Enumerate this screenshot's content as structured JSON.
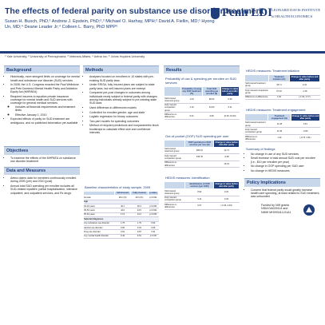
{
  "header": {
    "title": "The effects of federal parity on substance use disorder treatment",
    "authors": "Susan H. Busch, PhD;¹ Andrew J. Epstein, PhD;²,³ Michael O. Harhay, MPH;² David A. Fiellin, MD;¹ Hyong Un, MD;⁴ Deane Leader Jr;⁴ Colleen L. Barry, PhD MPP⁵",
    "affiliations": "¹ Yale University; ² University of Pennsylvania; ³ Veterans Affairs; ⁴ Aetna Inc; ⁵ Johns Hopkins University",
    "logo": "Penn LDI",
    "logo_text": [
      "LEONARD DAVIS INSTITUTE",
      "of HEALTH ECONOMICS"
    ]
  },
  "background": {
    "heading": "Background",
    "bullets": [
      "Historically, more stringent limits on coverage for mental health and substance use disorder (SUD) services",
      "In 2008, the U.S. Congress enacted the Paul Wellstone and Pete Domenici Mental Health Parity and Addiction Equity Act (MHPAEA)",
      {
        "text": "Required insurers to equalize private insurance coverage for mental health and SUD services with coverage for general medical services",
        "sub": [
          "Includes all financial requirements and treatment limits",
          "Effective January 1, 2010"
        ]
      },
      "Expected effects of parity on SUD treatment are ambiguous, and no published information yet available"
    ]
  },
  "objectives": {
    "heading": "Objectives",
    "bullets": [
      "To examine the effects of the MHPAEA on substance use disorder treatment"
    ]
  },
  "data_measures": {
    "heading": "Data and Measures",
    "bullets": [
      "Aetna claims data for members continuously enrolled during 2009 (pre) and 2010 (post)",
      "Annual total SUD spending per enrollee includes all SUD-related inpatient, partial hospitalization, intensive outpatient, and outpatient services, and Rx drugs"
    ]
  },
  "methods": {
    "heading": "Methods",
    "bullets": [
      "Analyses focused on enrollees in 10 states with pre-existing SUD parity laws",
      "Under ERISA, fully insured plans are subject to state parity laws, but self-insured plans are exempt",
      "Compared pre-post changes in outcomes among individuals newly subject to federal parity with changes among individuals already subject to pre-existing state SUD laws",
      "Used difference-in-differences models",
      "Controlled for enrollee gender, age and state",
      "Logistic regression for binary outcomes",
      "Two-part models for spending outcomes",
      "Method of recycled predictions and nonparametric block bootstraps to calculate effect size and confidence intervals"
    ]
  },
  "baseline_table": {
    "caption": "Baseline characteristics of study sample, 2009",
    "columns": [
      "Self-insured",
      "Fully insured",
      "p-value"
    ],
    "rows": [
      [
        "Female",
        "48.2 (%)",
        "49.4 (%)",
        "p<0.001"
      ],
      [
        "Age"
      ],
      [
        "18-34 years",
        "40.1",
        "36.3",
        "p<0.001"
      ],
      [
        "35-54 years",
        "42.0",
        "44.5",
        "p<0.001"
      ],
      [
        "55-64 years",
        "17.9",
        "19.2",
        "p<0.001"
      ],
      [
        "Selected diagnoses"
      ],
      [
        "Any substance use disorder",
        "1.75",
        "1.79",
        "0.52"
      ],
      [
        "Alcohol use disorder",
        "0.90",
        "0.91",
        "0.66"
      ],
      [
        "Drug use disorder",
        "0.91",
        "0.87",
        "0.31"
      ],
      [
        "Any mental health disorder",
        "9.42",
        "9.61",
        "p<0.05"
      ]
    ]
  },
  "results": {
    "heading": "Results",
    "use_table": {
      "caption": "Probability of use & spending per enrollee on SUD services",
      "columns": [
        "Probability of using any SUD treatment (%)",
        "Total SUD spending per enrollee ($)",
        "Change in value before and after parity"
      ],
      "rows": [
        [
          "Self-insured treatment group",
          "1.04",
          "86.52",
          "0.06"
        ],
        [
          "Fully insured comparison group",
          "1.10",
          "91.63",
          "5.11"
        ],
        [
          "Difference-in-differences",
          "0.01",
          "9.99",
          "(0.25, 19.30)"
        ]
      ]
    },
    "oop_table": {
      "caption": "Out-of-pocket (OOP) SUD spending per user",
      "columns": [
        "OOP spending for SUD services per user ($)",
        "Change in value before and after parity"
      ],
      "rows": [
        [
          "Self-insured treatment group",
          "480.16",
          "12.71"
        ],
        [
          "Fully insured comparison group",
          "515.78",
          "-3.48"
        ],
        [
          "Difference-in-differences",
          "",
          "16.19"
        ]
      ]
    },
    "identification_table": {
      "caption": "HEDIS measures: Identification",
      "columns": [
        "Identification of SUD services (per 1000)",
        "Change in value before and after parity"
      ],
      "rows": [
        [
          "Self-insured treatment group",
          "8.92",
          "0.22"
        ],
        [
          "Fully insured comparison group",
          "9.11",
          "0.15"
        ],
        [
          "Difference-in-differences",
          "0.07",
          "(-0.34, 0.49)"
        ]
      ]
    }
  },
  "hedis": {
    "initiation_table": {
      "caption": "HEDIS measures: Treatment initiation",
      "columns": [
        "Treatment initiation (%)",
        "Change in value before and after parity"
      ],
      "rows": [
        [
          "Self-insured treatment group",
          "36.71",
          "0.44"
        ],
        [
          "Fully insured comparison group",
          "37.32",
          "-1.18"
        ],
        [
          "Difference-in-differences",
          "1.62",
          "(-1.53, 4.77)"
        ]
      ]
    },
    "engagement_table": {
      "caption": "HEDIS measures: Treatment engagement",
      "columns": [
        "Treatment engagement (%)",
        "Change in value before and after parity"
      ],
      "rows": [
        [
          "Self-insured treatment group",
          "11.28",
          "0.61"
        ],
        [
          "Fully insured comparison group",
          "11.93",
          "-0.83"
        ],
        [
          "Difference-in-differences",
          "1.44",
          "(-0.73, 3.61)"
        ]
      ]
    }
  },
  "summary": {
    "heading": "Summary of findings",
    "bullets": [
      "No change in use of any SUD services",
      "Small increase in total annual SUD cost per enrollee (i.e., $10 per enrollee per year)",
      "No change in OOP spending per SUD user",
      "No change in HEDIS measures"
    ]
  },
  "policy": {
    "heading": "Policy Implications",
    "bullets": [
      "Concern that federal parity would greatly increase health care spending, at least related to SUD treatment, was unfounded"
    ]
  },
  "funding": [
    "Funded by NIH grants",
    "NIDA DA029414 and",
    "NIMH MH093414-01A1"
  ]
}
